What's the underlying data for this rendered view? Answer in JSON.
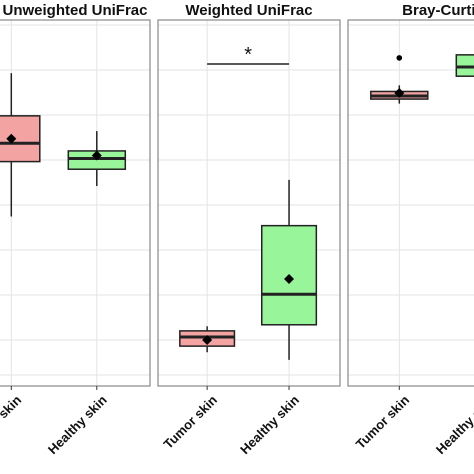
{
  "colors": {
    "tumor_fill": "#F4A3A3",
    "healthy_fill": "#99F59A",
    "box_stroke": "#222222",
    "panel_border": "#888888",
    "grid": "#E3E3E3",
    "mean_marker": "#000000"
  },
  "chart_data": [
    {
      "type": "box",
      "title": "Unweighted UniFrac",
      "categories": [
        "Tumor skin",
        "Healthy skin"
      ],
      "ylim": [
        0,
        1
      ],
      "grid": true,
      "series": [
        {
          "category": "Tumor skin",
          "whisker_low": 0.5,
          "q1": 0.68,
          "median": 0.74,
          "q3": 0.83,
          "whisker_high": 0.97,
          "mean": 0.755,
          "outliers": []
        },
        {
          "category": "Healthy skin",
          "whisker_low": 0.6,
          "q1": 0.655,
          "median": 0.69,
          "q3": 0.715,
          "whisker_high": 0.78,
          "mean": 0.7,
          "outliers": []
        }
      ],
      "significance": null
    },
    {
      "type": "box",
      "title": "Weighted UniFrac",
      "categories": [
        "Tumor skin",
        "Healthy skin"
      ],
      "ylim": [
        0,
        1
      ],
      "grid": true,
      "series": [
        {
          "category": "Tumor skin",
          "whisker_low": 0.055,
          "q1": 0.075,
          "median": 0.105,
          "q3": 0.125,
          "whisker_high": 0.14,
          "mean": 0.095,
          "outliers": []
        },
        {
          "category": "Healthy skin",
          "whisker_low": 0.03,
          "q1": 0.145,
          "median": 0.245,
          "q3": 0.47,
          "whisker_high": 0.62,
          "mean": 0.295,
          "outliers": []
        }
      ],
      "significance": {
        "label": "*",
        "between": [
          "Tumor skin",
          "Healthy skin"
        ],
        "y": 1.0
      }
    },
    {
      "type": "box",
      "title": "Bray-Curtis",
      "categories": [
        "Tumor skin",
        "Healthy skin"
      ],
      "ylim": [
        0,
        1
      ],
      "grid": true,
      "series": [
        {
          "category": "Tumor skin",
          "whisker_low": 0.87,
          "q1": 0.885,
          "median": 0.895,
          "q3": 0.91,
          "whisker_high": 0.93,
          "mean": 0.905,
          "outliers": [
            1.02
          ]
        },
        {
          "category": "Healthy skin",
          "whisker_low": 0.94,
          "q1": 0.96,
          "median": 0.99,
          "q3": 1.03,
          "whisker_high": 1.06,
          "mean": 1.0,
          "outliers": []
        }
      ],
      "significance": null
    }
  ]
}
